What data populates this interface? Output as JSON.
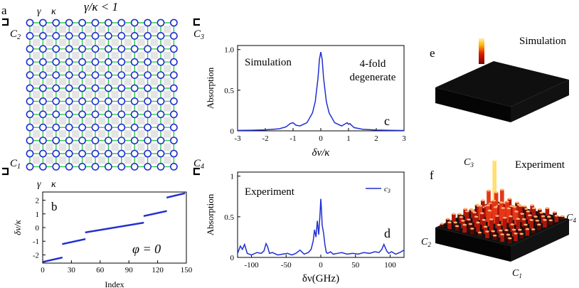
{
  "panels": {
    "a": {
      "letter": "a",
      "legend_gamma": "γ",
      "legend_kappa": "κ",
      "condition": "γ/κ < 1",
      "corners": {
        "c1": {
          "base": "C",
          "sub": "1"
        },
        "c2": {
          "base": "C",
          "sub": "2"
        },
        "c3": {
          "base": "C",
          "sub": "3"
        },
        "c4": {
          "base": "C",
          "sub": "4"
        }
      },
      "bottom_gamma": "γ",
      "bottom_kappa": "κ",
      "lattice_size": 12,
      "colors": {
        "ring": "#1f2fd0",
        "coupler": "#2ecc40",
        "plaquette": "#e4e4e4"
      }
    },
    "b": {
      "letter": "b",
      "annotation": "φ = 0"
    },
    "c": {
      "letter": "c",
      "label_sim": "Simulation",
      "label_deg_1": "4-fold",
      "label_deg_2": "degenerate"
    },
    "d": {
      "letter": "d",
      "label_exp": "Experiment",
      "legend": "c3"
    },
    "e": {
      "letter": "e",
      "label": "Simulation"
    },
    "f": {
      "letter": "f",
      "label": "Experiment",
      "corner_c1": "C1",
      "corner_c2": "C2",
      "corner_c3": "C3",
      "corner_c4": "C4"
    }
  },
  "chart_data": [
    {
      "id": "b",
      "type": "scatter",
      "xlabel": "Index",
      "ylabel": "δν/κ",
      "xlim": [
        0,
        150
      ],
      "ylim": [
        -2.6,
        2.6
      ],
      "xticks": [
        "0",
        "30",
        "60",
        "90",
        "120",
        "150"
      ],
      "yticks": [
        "-2",
        "-1",
        "0",
        "1",
        "2"
      ],
      "color": "#1f2fd0",
      "segments": [
        {
          "x": [
            1,
            20
          ],
          "y": [
            -2.5,
            -2.2
          ]
        },
        {
          "x": [
            21,
            44
          ],
          "y": [
            -1.2,
            -0.85
          ]
        },
        {
          "x": [
            45,
            105
          ],
          "y": [
            -0.35,
            0.35
          ]
        },
        {
          "x": [
            106,
            129
          ],
          "y": [
            0.85,
            1.2
          ]
        },
        {
          "x": [
            130,
            148
          ],
          "y": [
            2.2,
            2.5
          ]
        }
      ]
    },
    {
      "id": "c",
      "type": "line",
      "xlabel": "δν/κ",
      "ylabel": "Absorption",
      "xlim": [
        -3,
        3
      ],
      "ylim": [
        0,
        1.05
      ],
      "xticks": [
        "-3",
        "-2",
        "-1",
        "0",
        "1",
        "2",
        "3"
      ],
      "yticks": [
        "0",
        "0.5",
        "1.0"
      ],
      "color": "#1f2fd0",
      "series": [
        {
          "x": [
            -3,
            -2.5,
            -2,
            -1.5,
            -1.25,
            -1.1,
            -1.0,
            -0.9,
            -0.75,
            -0.5,
            -0.3,
            -0.2,
            -0.1,
            -0.05,
            0,
            0.05,
            0.1,
            0.2,
            0.3,
            0.5,
            0.75,
            0.85,
            0.95,
            1.0,
            1.05,
            1.1,
            1.2,
            1.5,
            2,
            2.5,
            3
          ],
          "y": [
            0.005,
            0.008,
            0.012,
            0.025,
            0.05,
            0.09,
            0.1,
            0.07,
            0.06,
            0.1,
            0.22,
            0.36,
            0.65,
            0.88,
            0.97,
            0.88,
            0.65,
            0.36,
            0.22,
            0.1,
            0.06,
            0.08,
            0.1,
            0.08,
            0.09,
            0.07,
            0.04,
            0.02,
            0.01,
            0.006,
            0.004
          ]
        }
      ]
    },
    {
      "id": "d",
      "type": "line",
      "xlabel": "δν(GHz)",
      "ylabel": "Absorption",
      "xlim": [
        -120,
        120
      ],
      "ylim": [
        0,
        1.05
      ],
      "xticks": [
        "-100",
        "-50",
        "0",
        "50",
        "100"
      ],
      "yticks": [
        "0",
        "0.5",
        "1"
      ],
      "color": "#1f2fd0",
      "series": [
        {
          "name": "c3",
          "x": [
            -120,
            -116,
            -113,
            -110,
            -106,
            -100,
            -92,
            -86,
            -82,
            -79,
            -77,
            -74,
            -70,
            -62,
            -55,
            -48,
            -42,
            -36,
            -30,
            -24,
            -18,
            -14,
            -11,
            -9,
            -7,
            -5,
            -3,
            -1,
            0,
            1,
            2,
            4,
            6,
            8,
            10,
            14,
            18,
            24,
            30,
            38,
            46,
            54,
            62,
            70,
            78,
            84,
            88,
            91,
            93,
            95,
            98,
            102,
            108,
            114,
            120
          ],
          "y": [
            0.05,
            0.14,
            0.1,
            0.16,
            0.05,
            0.03,
            0.06,
            0.05,
            0.08,
            0.17,
            0.14,
            0.05,
            0.06,
            0.03,
            0.04,
            0.05,
            0.03,
            0.05,
            0.09,
            0.04,
            0.06,
            0.1,
            0.2,
            0.34,
            0.25,
            0.45,
            0.28,
            0.55,
            0.72,
            0.58,
            0.4,
            0.3,
            0.15,
            0.06,
            0.05,
            0.07,
            0.04,
            0.05,
            0.06,
            0.04,
            0.05,
            0.04,
            0.06,
            0.05,
            0.07,
            0.06,
            0.1,
            0.16,
            0.12,
            0.08,
            0.05,
            0.07,
            0.04,
            0.06,
            0.09
          ]
        }
      ]
    }
  ]
}
